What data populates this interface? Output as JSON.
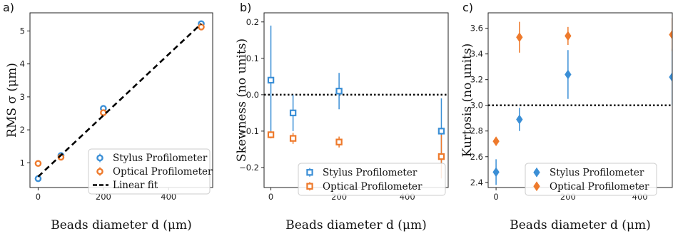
{
  "colors": {
    "stylus": "#3b8fd6",
    "optical": "#ee7a2c",
    "fit": "#000000"
  },
  "chart_data": [
    {
      "panel_label": "a)",
      "type": "scatter",
      "xlabel": "Beads diameter d (μm)",
      "ylabel": "RMS σ (μm)",
      "xlim": [
        -25,
        535
      ],
      "ylim": [
        0.25,
        5.55
      ],
      "xticks": [
        0,
        200,
        400
      ],
      "yticks": [
        1,
        2,
        3,
        4,
        5
      ],
      "marker": "circle",
      "legend_position": "lower-right",
      "series": [
        {
          "name": "Stylus Profilometer",
          "color": "#3b8fd6",
          "points": [
            {
              "x": 0,
              "y": 0.52,
              "err": 0.03
            },
            {
              "x": 70,
              "y": 1.22,
              "err": 0.05
            },
            {
              "x": 200,
              "y": 2.65,
              "err": 0.05
            },
            {
              "x": 500,
              "y": 5.22,
              "err": 0.07
            }
          ]
        },
        {
          "name": "Optical Profilometer",
          "color": "#ee7a2c",
          "points": [
            {
              "x": 0,
              "y": 0.98,
              "err": 0.03
            },
            {
              "x": 70,
              "y": 1.17,
              "err": 0.05
            },
            {
              "x": 200,
              "y": 2.52,
              "err": 0.05
            },
            {
              "x": 500,
              "y": 5.12,
              "err": 0.05
            }
          ]
        },
        {
          "name": "Linear fit",
          "color": "#000000",
          "style": "dashed-line",
          "line": [
            {
              "x": 0,
              "y": 0.58
            },
            {
              "x": 500,
              "y": 5.22
            }
          ]
        }
      ]
    },
    {
      "panel_label": "b)",
      "type": "scatter",
      "xlabel": "Beads diameter d (μm)",
      "ylabel": "Skewness (no units)",
      "xlim": [
        -20,
        520
      ],
      "ylim": [
        -0.255,
        0.225
      ],
      "xticks": [
        0,
        200,
        400
      ],
      "yticks": [
        -0.2,
        -0.1,
        0.0,
        0.1,
        0.2
      ],
      "ytick_labels": [
        "−0.2",
        "−0.1",
        "0.0",
        "0.1",
        "0.2"
      ],
      "reference_line": 0.0,
      "marker": "square",
      "legend_position": "lower-right",
      "series": [
        {
          "name": "Stylus Profilometer",
          "color": "#3b8fd6",
          "points": [
            {
              "x": 0,
              "y": 0.04,
              "err": 0.15
            },
            {
              "x": 65,
              "y": -0.05,
              "err": 0.05
            },
            {
              "x": 200,
              "y": 0.01,
              "err": 0.05
            },
            {
              "x": 500,
              "y": -0.1,
              "err": 0.09
            }
          ]
        },
        {
          "name": "Optical Profilometer",
          "color": "#ee7a2c",
          "points": [
            {
              "x": 0,
              "y": -0.11,
              "err": 0.01
            },
            {
              "x": 65,
              "y": -0.12,
              "err": 0.015
            },
            {
              "x": 200,
              "y": -0.13,
              "err": 0.015
            },
            {
              "x": 500,
              "y": -0.17,
              "err": 0.06
            }
          ]
        }
      ]
    },
    {
      "panel_label": "c)",
      "type": "scatter",
      "xlabel": "Beads diameter d (μm)",
      "ylabel": "Kurtosis (no units)",
      "xlim": [
        -22,
        490
      ],
      "ylim": [
        2.36,
        3.72
      ],
      "xticks": [
        0,
        200,
        400
      ],
      "yticks": [
        2.4,
        2.6,
        2.8,
        3.0,
        3.2,
        3.4,
        3.6
      ],
      "ytick_labels": [
        "2.4",
        "2.6",
        "2.8",
        "3.0",
        "3.2",
        "3.4",
        "3.6"
      ],
      "reference_line": 3.0,
      "marker": "diamond",
      "legend_position": "lower-right",
      "series": [
        {
          "name": "Stylus Profilometer",
          "color": "#3b8fd6",
          "points": [
            {
              "x": 0,
              "y": 2.48,
              "err": 0.1
            },
            {
              "x": 65,
              "y": 2.89,
              "err": 0.09
            },
            {
              "x": 200,
              "y": 3.24,
              "err": 0.19
            },
            {
              "x": 490,
              "y": 3.22,
              "err": 0.22
            }
          ]
        },
        {
          "name": "Optical Profilometer",
          "color": "#ee7a2c",
          "points": [
            {
              "x": 0,
              "y": 2.72,
              "err": 0.03
            },
            {
              "x": 65,
              "y": 3.53,
              "err": 0.12
            },
            {
              "x": 200,
              "y": 3.54,
              "err": 0.07
            },
            {
              "x": 490,
              "y": 3.55,
              "err": 0.13
            }
          ]
        }
      ]
    }
  ]
}
